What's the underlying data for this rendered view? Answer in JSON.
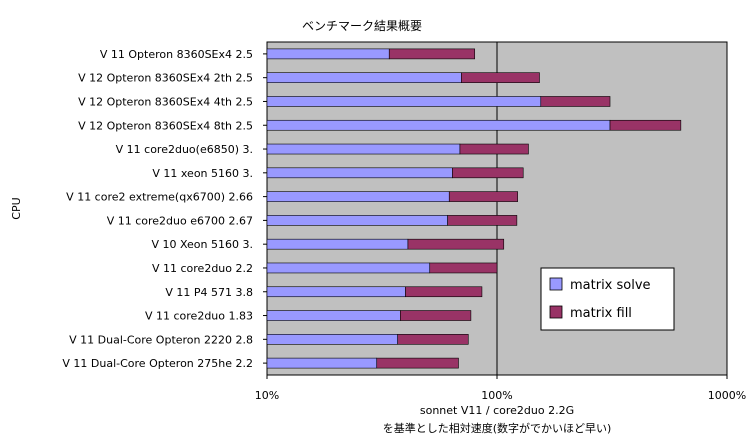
{
  "chart_data": {
    "type": "bar",
    "orientation": "horizontal",
    "stacked": true,
    "title": "ベンチマーク結果概要",
    "ylabel": "CPU",
    "xlabel": "sonnet V11 / core2duo 2.2G",
    "xlabel_line2": "を基準とした相対速度(数字がでかいほど早い)",
    "x_scale": "log",
    "xlim": [
      10,
      1000
    ],
    "x_ticks": [
      "10%",
      "100%",
      "1000%"
    ],
    "categories": [
      "V 11  Opteron 8360SEx4 2.5",
      "V 12  Opteron 8360SEx4 2th 2.5",
      "V 12  Opteron 8360SEx4 4th 2.5",
      "V 12  Opteron 8360SEx4 8th 2.5",
      "V 11  core2duo(e6850) 3.",
      "V 11  xeon 5160 3.",
      "V 11  core2 extreme(qx6700) 2.66",
      "V 11  core2duo e6700 2.67",
      "V 10  Xeon 5160 3.",
      "V 11  core2duo 2.2",
      "V 11  P4 571  3.8",
      "V 11  core2duo 1.83",
      "V 11  Dual-Core Opteron 2220 2.8",
      "V 11  Dual-Core Opteron 275he 2.2"
    ],
    "series": [
      {
        "name": "matrix solve",
        "color": "#9999ff",
        "values": [
          34,
          70,
          155,
          310,
          69,
          64,
          62,
          61,
          41,
          51,
          40,
          38,
          37,
          30
        ]
      },
      {
        "name": "matrix fill",
        "color": "#993366",
        "values": [
          80,
          153,
          310,
          630,
          137,
          130,
          123,
          122,
          107,
          100,
          86,
          77,
          75,
          68
        ]
      }
    ],
    "series_values_are_cumulative": true,
    "grid": {
      "x_major": true
    },
    "plot_background": "#c0c0c0",
    "legend": {
      "placement": "lower-right-inside"
    }
  }
}
